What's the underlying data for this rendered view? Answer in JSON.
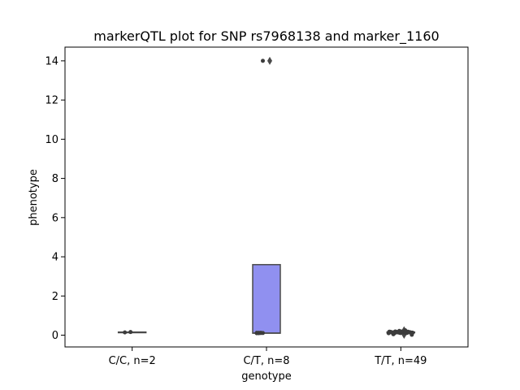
{
  "chart_data": {
    "type": "box",
    "title": "markerQTL plot for SNP rs7968138 and marker_1160",
    "xlabel": "genotype",
    "ylabel": "phenotype",
    "ylim": [
      -0.6,
      14.7
    ],
    "yticks": [
      0,
      2,
      4,
      6,
      8,
      10,
      12,
      14
    ],
    "grid": false,
    "box_color": "#9090f0",
    "point_color": "#3c3c3c",
    "categories": [
      "C/C, n=2",
      "C/T, n=8",
      "T/T, n=49"
    ],
    "groups": [
      {
        "category": "C/C, n=2",
        "box": {
          "q1": 0.14,
          "median": 0.15,
          "q3": 0.16,
          "whisker_low": 0.14,
          "whisker_high": 0.16
        },
        "outliers": [],
        "points": [
          0.14,
          0.16
        ]
      },
      {
        "category": "C/T, n=8",
        "box": {
          "q1": 0.1,
          "median": 0.11,
          "q3": 3.6,
          "whisker_low": 0.1,
          "whisker_high": 3.6
        },
        "outliers": [
          14.0
        ],
        "points": [
          0.1,
          0.1,
          0.11,
          0.11,
          0.12,
          0.12,
          0.12,
          14.0
        ]
      },
      {
        "category": "T/T, n=49",
        "box": {
          "q1": 0.12,
          "median": 0.14,
          "q3": 0.16,
          "whisker_low": 0.1,
          "whisker_high": 0.19
        },
        "outliers": [
          0.02,
          0.05,
          0.22,
          0.25
        ],
        "points": [
          0.1,
          0.1,
          0.11,
          0.11,
          0.11,
          0.12,
          0.12,
          0.12,
          0.12,
          0.13,
          0.13,
          0.13,
          0.13,
          0.13,
          0.14,
          0.14,
          0.14,
          0.14,
          0.14,
          0.14,
          0.15,
          0.15,
          0.15,
          0.15,
          0.15,
          0.16,
          0.16,
          0.16,
          0.16,
          0.17,
          0.17,
          0.17,
          0.18,
          0.18,
          0.19,
          0.19,
          0.12,
          0.13,
          0.14,
          0.15,
          0.16,
          0.13,
          0.14,
          0.15,
          0.12,
          0.02,
          0.05,
          0.22,
          0.25
        ]
      }
    ]
  }
}
